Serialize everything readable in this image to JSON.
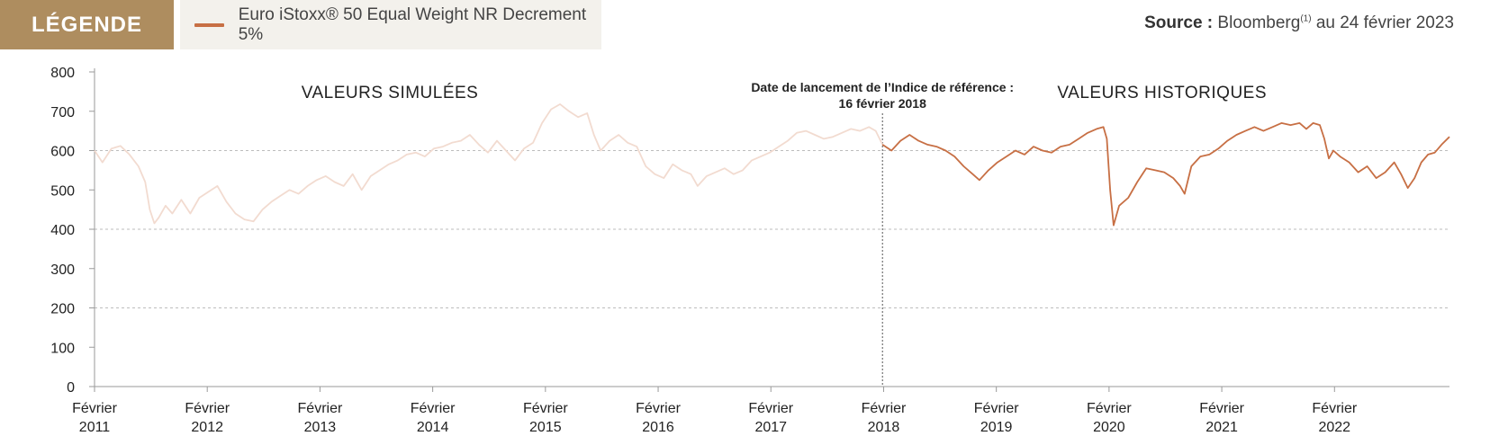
{
  "legend": {
    "tag": "LÉGENDE",
    "series_label": "Euro iStoxx® 50 Equal Weight NR Decrement 5%"
  },
  "source": {
    "label": "Source :",
    "text": "Bloomberg",
    "footnote": "(1)",
    "date": "au 24 février 2023"
  },
  "chart_data": {
    "type": "line",
    "title": "",
    "xlabel": "",
    "ylabel": "",
    "ylim": [
      0,
      800
    ],
    "yticks": [
      0,
      100,
      200,
      300,
      400,
      500,
      600,
      700,
      800
    ],
    "xticks": [
      {
        "top": "Février",
        "bottom": "2011",
        "year": 2011.13
      },
      {
        "top": "Février",
        "bottom": "2012",
        "year": 2012.13
      },
      {
        "top": "Février",
        "bottom": "2013",
        "year": 2013.13
      },
      {
        "top": "Février",
        "bottom": "2014",
        "year": 2014.13
      },
      {
        "top": "Février",
        "bottom": "2015",
        "year": 2015.13
      },
      {
        "top": "Février",
        "bottom": "2016",
        "year": 2016.13
      },
      {
        "top": "Février",
        "bottom": "2017",
        "year": 2017.13
      },
      {
        "top": "Février",
        "bottom": "2018",
        "year": 2018.13
      },
      {
        "top": "Février",
        "bottom": "2019",
        "year": 2019.13
      },
      {
        "top": "Février",
        "bottom": "2020",
        "year": 2020.13
      },
      {
        "top": "Février",
        "bottom": "2021",
        "year": 2021.13
      },
      {
        "top": "Février",
        "bottom": "2022",
        "year": 2022.13
      }
    ],
    "xlim": [
      2011.13,
      2023.15
    ],
    "gridlines_y": [
      200,
      400,
      600
    ],
    "grid_style": "dashed",
    "annotations": {
      "simulated_label": "VALEURS SIMULÉES",
      "historical_label": "VALEURS HISTORIQUES",
      "launch_line1": "Date de lancement de l’Indice de référence :",
      "launch_line2": "16 février 2018",
      "launch_year": 2018.12
    },
    "series": [
      {
        "name": "Euro iStoxx® 50 Equal Weight NR Decrement 5%",
        "segment": "simulated",
        "color": "#f2dbd0",
        "points": [
          [
            2011.13,
            600
          ],
          [
            2011.2,
            570
          ],
          [
            2011.28,
            605
          ],
          [
            2011.36,
            612
          ],
          [
            2011.44,
            590
          ],
          [
            2011.52,
            560
          ],
          [
            2011.58,
            520
          ],
          [
            2011.62,
            450
          ],
          [
            2011.66,
            415
          ],
          [
            2011.7,
            430
          ],
          [
            2011.76,
            460
          ],
          [
            2011.82,
            440
          ],
          [
            2011.9,
            475
          ],
          [
            2011.98,
            440
          ],
          [
            2012.06,
            480
          ],
          [
            2012.14,
            495
          ],
          [
            2012.22,
            510
          ],
          [
            2012.3,
            470
          ],
          [
            2012.38,
            440
          ],
          [
            2012.46,
            425
          ],
          [
            2012.54,
            420
          ],
          [
            2012.62,
            450
          ],
          [
            2012.7,
            470
          ],
          [
            2012.78,
            485
          ],
          [
            2012.86,
            500
          ],
          [
            2012.94,
            490
          ],
          [
            2013.02,
            510
          ],
          [
            2013.1,
            525
          ],
          [
            2013.18,
            535
          ],
          [
            2013.26,
            520
          ],
          [
            2013.34,
            510
          ],
          [
            2013.42,
            540
          ],
          [
            2013.5,
            500
          ],
          [
            2013.58,
            535
          ],
          [
            2013.66,
            550
          ],
          [
            2013.74,
            565
          ],
          [
            2013.82,
            575
          ],
          [
            2013.9,
            590
          ],
          [
            2013.98,
            595
          ],
          [
            2014.06,
            585
          ],
          [
            2014.14,
            605
          ],
          [
            2014.22,
            610
          ],
          [
            2014.3,
            620
          ],
          [
            2014.38,
            625
          ],
          [
            2014.46,
            640
          ],
          [
            2014.54,
            615
          ],
          [
            2014.62,
            595
          ],
          [
            2014.7,
            625
          ],
          [
            2014.78,
            600
          ],
          [
            2014.86,
            575
          ],
          [
            2014.94,
            605
          ],
          [
            2015.02,
            620
          ],
          [
            2015.1,
            670
          ],
          [
            2015.18,
            705
          ],
          [
            2015.26,
            718
          ],
          [
            2015.34,
            700
          ],
          [
            2015.42,
            685
          ],
          [
            2015.5,
            695
          ],
          [
            2015.56,
            640
          ],
          [
            2015.62,
            600
          ],
          [
            2015.7,
            625
          ],
          [
            2015.78,
            640
          ],
          [
            2015.86,
            620
          ],
          [
            2015.94,
            610
          ],
          [
            2016.02,
            560
          ],
          [
            2016.1,
            540
          ],
          [
            2016.18,
            530
          ],
          [
            2016.26,
            565
          ],
          [
            2016.34,
            550
          ],
          [
            2016.42,
            540
          ],
          [
            2016.48,
            510
          ],
          [
            2016.56,
            535
          ],
          [
            2016.64,
            545
          ],
          [
            2016.72,
            555
          ],
          [
            2016.8,
            540
          ],
          [
            2016.88,
            550
          ],
          [
            2016.96,
            575
          ],
          [
            2017.04,
            585
          ],
          [
            2017.12,
            595
          ],
          [
            2017.2,
            610
          ],
          [
            2017.28,
            625
          ],
          [
            2017.36,
            645
          ],
          [
            2017.44,
            650
          ],
          [
            2017.52,
            640
          ],
          [
            2017.6,
            630
          ],
          [
            2017.68,
            635
          ],
          [
            2017.76,
            645
          ],
          [
            2017.84,
            655
          ],
          [
            2017.92,
            650
          ],
          [
            2018.0,
            660
          ],
          [
            2018.06,
            650
          ],
          [
            2018.12,
            615
          ]
        ]
      },
      {
        "name": "Euro iStoxx® 50 Equal Weight NR Decrement 5%",
        "segment": "historical",
        "color": "#c76f44",
        "points": [
          [
            2018.12,
            615
          ],
          [
            2018.2,
            600
          ],
          [
            2018.28,
            625
          ],
          [
            2018.36,
            640
          ],
          [
            2018.44,
            625
          ],
          [
            2018.52,
            615
          ],
          [
            2018.6,
            610
          ],
          [
            2018.68,
            600
          ],
          [
            2018.76,
            585
          ],
          [
            2018.84,
            560
          ],
          [
            2018.92,
            540
          ],
          [
            2018.98,
            525
          ],
          [
            2019.06,
            550
          ],
          [
            2019.14,
            570
          ],
          [
            2019.22,
            585
          ],
          [
            2019.3,
            600
          ],
          [
            2019.38,
            590
          ],
          [
            2019.46,
            610
          ],
          [
            2019.54,
            600
          ],
          [
            2019.62,
            595
          ],
          [
            2019.7,
            610
          ],
          [
            2019.78,
            615
          ],
          [
            2019.86,
            630
          ],
          [
            2019.94,
            645
          ],
          [
            2020.02,
            655
          ],
          [
            2020.08,
            660
          ],
          [
            2020.11,
            630
          ],
          [
            2020.14,
            500
          ],
          [
            2020.17,
            410
          ],
          [
            2020.22,
            460
          ],
          [
            2020.3,
            480
          ],
          [
            2020.38,
            520
          ],
          [
            2020.46,
            555
          ],
          [
            2020.54,
            550
          ],
          [
            2020.62,
            545
          ],
          [
            2020.7,
            530
          ],
          [
            2020.76,
            510
          ],
          [
            2020.8,
            490
          ],
          [
            2020.86,
            560
          ],
          [
            2020.94,
            585
          ],
          [
            2021.02,
            590
          ],
          [
            2021.1,
            605
          ],
          [
            2021.18,
            625
          ],
          [
            2021.26,
            640
          ],
          [
            2021.34,
            650
          ],
          [
            2021.42,
            660
          ],
          [
            2021.5,
            650
          ],
          [
            2021.58,
            660
          ],
          [
            2021.66,
            670
          ],
          [
            2021.74,
            665
          ],
          [
            2021.82,
            670
          ],
          [
            2021.88,
            655
          ],
          [
            2021.94,
            670
          ],
          [
            2022.0,
            665
          ],
          [
            2022.04,
            630
          ],
          [
            2022.08,
            580
          ],
          [
            2022.12,
            600
          ],
          [
            2022.18,
            585
          ],
          [
            2022.26,
            570
          ],
          [
            2022.34,
            545
          ],
          [
            2022.42,
            560
          ],
          [
            2022.5,
            530
          ],
          [
            2022.58,
            545
          ],
          [
            2022.66,
            570
          ],
          [
            2022.72,
            540
          ],
          [
            2022.78,
            505
          ],
          [
            2022.84,
            530
          ],
          [
            2022.9,
            570
          ],
          [
            2022.96,
            590
          ],
          [
            2023.02,
            595
          ],
          [
            2023.08,
            615
          ],
          [
            2023.15,
            635
          ]
        ]
      }
    ]
  }
}
